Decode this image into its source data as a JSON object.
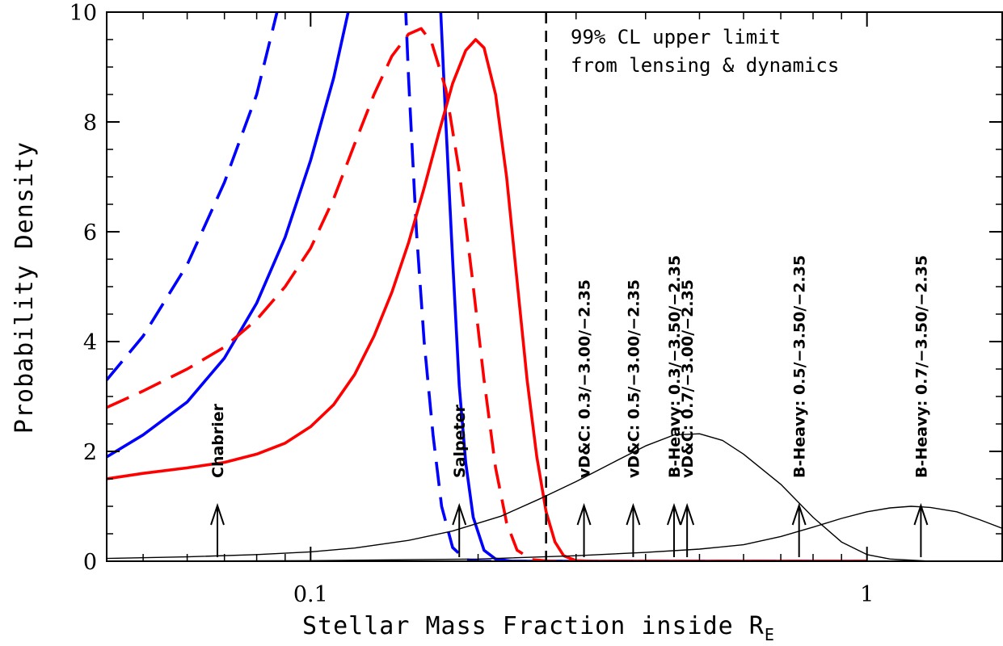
{
  "chart_data": {
    "type": "line",
    "xlabel": "Stellar Mass Fraction inside R",
    "xlabel_sub": "E",
    "ylabel": "Probability Density",
    "xscale": "log",
    "xlim": [
      0.043,
      1.75
    ],
    "ylim": [
      0,
      10
    ],
    "xticks_major": [
      {
        "value": 0.1,
        "label": "0.1"
      },
      {
        "value": 1,
        "label": "1"
      }
    ],
    "yticks": [
      {
        "value": 0,
        "label": "0"
      },
      {
        "value": 2,
        "label": "2"
      },
      {
        "value": 4,
        "label": "4"
      },
      {
        "value": 6,
        "label": "6"
      },
      {
        "value": 8,
        "label": "8"
      },
      {
        "value": 10,
        "label": "10"
      }
    ],
    "grid": false,
    "annotation": [
      "99% CL upper limit",
      "from lensing & dynamics"
    ],
    "upper_limit_x": 0.265,
    "series": [
      {
        "color": "#0000ff",
        "dash": "long",
        "points": [
          [
            0.043,
            3.3
          ],
          [
            0.05,
            4.1
          ],
          [
            0.06,
            5.4
          ],
          [
            0.07,
            6.9
          ],
          [
            0.08,
            8.5
          ],
          [
            0.088,
            10.2
          ]
        ]
      },
      {
        "color": "#0000ff",
        "dash": "long",
        "points": [
          [
            0.148,
            10.2
          ],
          [
            0.15,
            8.8
          ],
          [
            0.155,
            6.0
          ],
          [
            0.16,
            4.0
          ],
          [
            0.166,
            2.3
          ],
          [
            0.172,
            1.0
          ],
          [
            0.18,
            0.25
          ],
          [
            0.19,
            0.03
          ],
          [
            0.2,
            0.0
          ],
          [
            0.8,
            0.0
          ]
        ]
      },
      {
        "color": "#0000ff",
        "dash": "solid",
        "points": [
          [
            0.043,
            1.9
          ],
          [
            0.05,
            2.3
          ],
          [
            0.06,
            2.9
          ],
          [
            0.07,
            3.7
          ],
          [
            0.08,
            4.7
          ],
          [
            0.09,
            5.9
          ],
          [
            0.1,
            7.3
          ],
          [
            0.11,
            8.8
          ],
          [
            0.118,
            10.2
          ]
        ]
      },
      {
        "color": "#0000ff",
        "dash": "solid",
        "points": [
          [
            0.171,
            10.2
          ],
          [
            0.175,
            8.0
          ],
          [
            0.18,
            5.5
          ],
          [
            0.185,
            3.2
          ],
          [
            0.19,
            1.8
          ],
          [
            0.196,
            0.8
          ],
          [
            0.205,
            0.2
          ],
          [
            0.215,
            0.04
          ],
          [
            0.23,
            0.0
          ],
          [
            1.0,
            0.0
          ]
        ]
      },
      {
        "color": "#ff0000",
        "dash": "long",
        "points": [
          [
            0.043,
            2.8
          ],
          [
            0.05,
            3.1
          ],
          [
            0.06,
            3.5
          ],
          [
            0.07,
            3.9
          ],
          [
            0.08,
            4.4
          ],
          [
            0.09,
            5.0
          ],
          [
            0.1,
            5.7
          ],
          [
            0.11,
            6.6
          ],
          [
            0.12,
            7.6
          ],
          [
            0.13,
            8.5
          ],
          [
            0.14,
            9.2
          ],
          [
            0.15,
            9.6
          ],
          [
            0.158,
            9.7
          ],
          [
            0.165,
            9.45
          ],
          [
            0.175,
            8.6
          ],
          [
            0.185,
            7.1
          ],
          [
            0.195,
            5.2
          ],
          [
            0.205,
            3.3
          ],
          [
            0.215,
            1.7
          ],
          [
            0.225,
            0.7
          ],
          [
            0.235,
            0.2
          ],
          [
            0.25,
            0.03
          ],
          [
            0.27,
            0.0
          ],
          [
            1.0,
            0.0
          ]
        ]
      },
      {
        "color": "#ff0000",
        "dash": "solid",
        "points": [
          [
            0.043,
            1.5
          ],
          [
            0.05,
            1.6
          ],
          [
            0.06,
            1.7
          ],
          [
            0.07,
            1.8
          ],
          [
            0.08,
            1.95
          ],
          [
            0.09,
            2.15
          ],
          [
            0.1,
            2.45
          ],
          [
            0.11,
            2.85
          ],
          [
            0.12,
            3.4
          ],
          [
            0.13,
            4.1
          ],
          [
            0.14,
            4.9
          ],
          [
            0.15,
            5.8
          ],
          [
            0.16,
            6.8
          ],
          [
            0.17,
            7.8
          ],
          [
            0.18,
            8.7
          ],
          [
            0.19,
            9.3
          ],
          [
            0.198,
            9.5
          ],
          [
            0.205,
            9.35
          ],
          [
            0.215,
            8.5
          ],
          [
            0.225,
            7.0
          ],
          [
            0.235,
            5.1
          ],
          [
            0.245,
            3.3
          ],
          [
            0.255,
            1.9
          ],
          [
            0.265,
            0.9
          ],
          [
            0.275,
            0.35
          ],
          [
            0.285,
            0.1
          ],
          [
            0.3,
            0.01
          ],
          [
            0.32,
            0.0
          ],
          [
            1.0,
            0.0
          ]
        ]
      },
      {
        "color": "#000000",
        "dash": "thin",
        "points": [
          [
            0.043,
            0.05
          ],
          [
            0.06,
            0.08
          ],
          [
            0.08,
            0.12
          ],
          [
            0.1,
            0.17
          ],
          [
            0.12,
            0.24
          ],
          [
            0.15,
            0.38
          ],
          [
            0.18,
            0.55
          ],
          [
            0.22,
            0.82
          ],
          [
            0.26,
            1.15
          ],
          [
            0.3,
            1.45
          ],
          [
            0.35,
            1.8
          ],
          [
            0.4,
            2.1
          ],
          [
            0.45,
            2.3
          ],
          [
            0.5,
            2.32
          ],
          [
            0.55,
            2.2
          ],
          [
            0.6,
            1.95
          ],
          [
            0.7,
            1.4
          ],
          [
            0.8,
            0.8
          ],
          [
            0.9,
            0.35
          ],
          [
            1.0,
            0.12
          ],
          [
            1.1,
            0.04
          ],
          [
            1.3,
            0.0
          ]
        ]
      },
      {
        "color": "#000000",
        "dash": "thin",
        "points": [
          [
            0.043,
            0.0
          ],
          [
            0.1,
            0.01
          ],
          [
            0.2,
            0.04
          ],
          [
            0.3,
            0.1
          ],
          [
            0.4,
            0.16
          ],
          [
            0.5,
            0.22
          ],
          [
            0.6,
            0.3
          ],
          [
            0.7,
            0.45
          ],
          [
            0.8,
            0.62
          ],
          [
            0.9,
            0.78
          ],
          [
            1.0,
            0.9
          ],
          [
            1.1,
            0.97
          ],
          [
            1.2,
            1.0
          ],
          [
            1.3,
            0.98
          ],
          [
            1.45,
            0.9
          ],
          [
            1.6,
            0.75
          ],
          [
            1.75,
            0.6
          ]
        ]
      }
    ],
    "markers": [
      {
        "x": 0.068,
        "label": "Chabrier"
      },
      {
        "x": 0.185,
        "label": "Salpeter"
      },
      {
        "x": 0.31,
        "label": "vD&C:  0.3/−3.00/−2.35"
      },
      {
        "x": 0.38,
        "label": "vD&C:  0.5/−3.00/−2.35"
      },
      {
        "x": 0.45,
        "label": "B-Heavy:  0.3/−3.50/−2.35"
      },
      {
        "x": 0.475,
        "label": "vD&C:  0.7/−3.00/−2.35"
      },
      {
        "x": 0.755,
        "label": "B-Heavy:  0.5/−3.50/−2.35"
      },
      {
        "x": 1.25,
        "label": "B-Heavy:  0.7/−3.50/−2.35"
      }
    ]
  }
}
